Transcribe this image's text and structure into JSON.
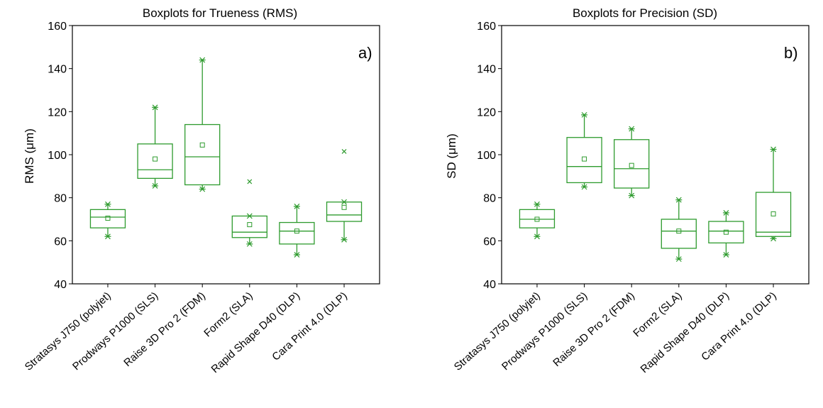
{
  "accent_color": "#2e9b2e",
  "chart_data": [
    {
      "type": "boxplot",
      "title": "Boxplots for Trueness (RMS)",
      "ylabel": "RMS (μm)",
      "panel_label": "a)",
      "ylim": [
        40,
        160
      ],
      "yticks": [
        40,
        60,
        80,
        100,
        120,
        140,
        160
      ],
      "categories": [
        "Stratasys J750 (polyjet)",
        "Prodways P1000 (SLS)",
        "Raise 3D Pro 2 (FDM)",
        "Form2 (SLA)",
        "Rapid Shape D40 (DLP)",
        "Cara Print 4.0 (DLP)"
      ],
      "boxes": [
        {
          "min": 62,
          "q1": 66,
          "median": 71,
          "q3": 74.5,
          "max": 77,
          "mean": 70.5,
          "outliers": []
        },
        {
          "min": 85.5,
          "q1": 89,
          "median": 93,
          "q3": 105,
          "max": 122,
          "mean": 98,
          "outliers": []
        },
        {
          "min": 84,
          "q1": 86,
          "median": 99,
          "q3": 114,
          "max": 144,
          "mean": 104.5,
          "outliers": []
        },
        {
          "min": 58.5,
          "q1": 61.5,
          "median": 64,
          "q3": 71.5,
          "max": 71.5,
          "mean": 67.5,
          "outliers": [
            87.5
          ]
        },
        {
          "min": 53.5,
          "q1": 58.5,
          "median": 64.5,
          "q3": 68.5,
          "max": 76,
          "mean": 64.5,
          "outliers": []
        },
        {
          "min": 60.5,
          "q1": 69,
          "median": 72,
          "q3": 78,
          "max": 78,
          "mean": 75.5,
          "outliers": [
            101.5
          ]
        }
      ]
    },
    {
      "type": "boxplot",
      "title": "Boxplots for Precision (SD)",
      "ylabel": "SD (μm)",
      "panel_label": "b)",
      "ylim": [
        40,
        160
      ],
      "yticks": [
        40,
        60,
        80,
        100,
        120,
        140,
        160
      ],
      "categories": [
        "Stratasys J750 (polyjet)",
        "Prodways P1000 (SLS)",
        "Raise 3D Pro 2 (FDM)",
        "Form2 (SLA)",
        "Rapid Shape D40 (DLP)",
        "Cara Print 4.0 (DLP)"
      ],
      "boxes": [
        {
          "min": 62,
          "q1": 66,
          "median": 70,
          "q3": 74.5,
          "max": 77,
          "mean": 70,
          "outliers": []
        },
        {
          "min": 85,
          "q1": 87,
          "median": 94.5,
          "q3": 108,
          "max": 118.5,
          "mean": 98,
          "outliers": []
        },
        {
          "min": 81,
          "q1": 84.5,
          "median": 93.5,
          "q3": 107,
          "max": 112,
          "mean": 95,
          "outliers": []
        },
        {
          "min": 51.5,
          "q1": 56.5,
          "median": 64.5,
          "q3": 70,
          "max": 79,
          "mean": 64.5,
          "outliers": []
        },
        {
          "min": 53.5,
          "q1": 59,
          "median": 64.5,
          "q3": 69,
          "max": 73,
          "mean": 64,
          "outliers": []
        },
        {
          "min": 61,
          "q1": 62,
          "median": 64,
          "q3": 82.5,
          "max": 102.5,
          "mean": 72.5,
          "outliers": []
        }
      ]
    }
  ]
}
